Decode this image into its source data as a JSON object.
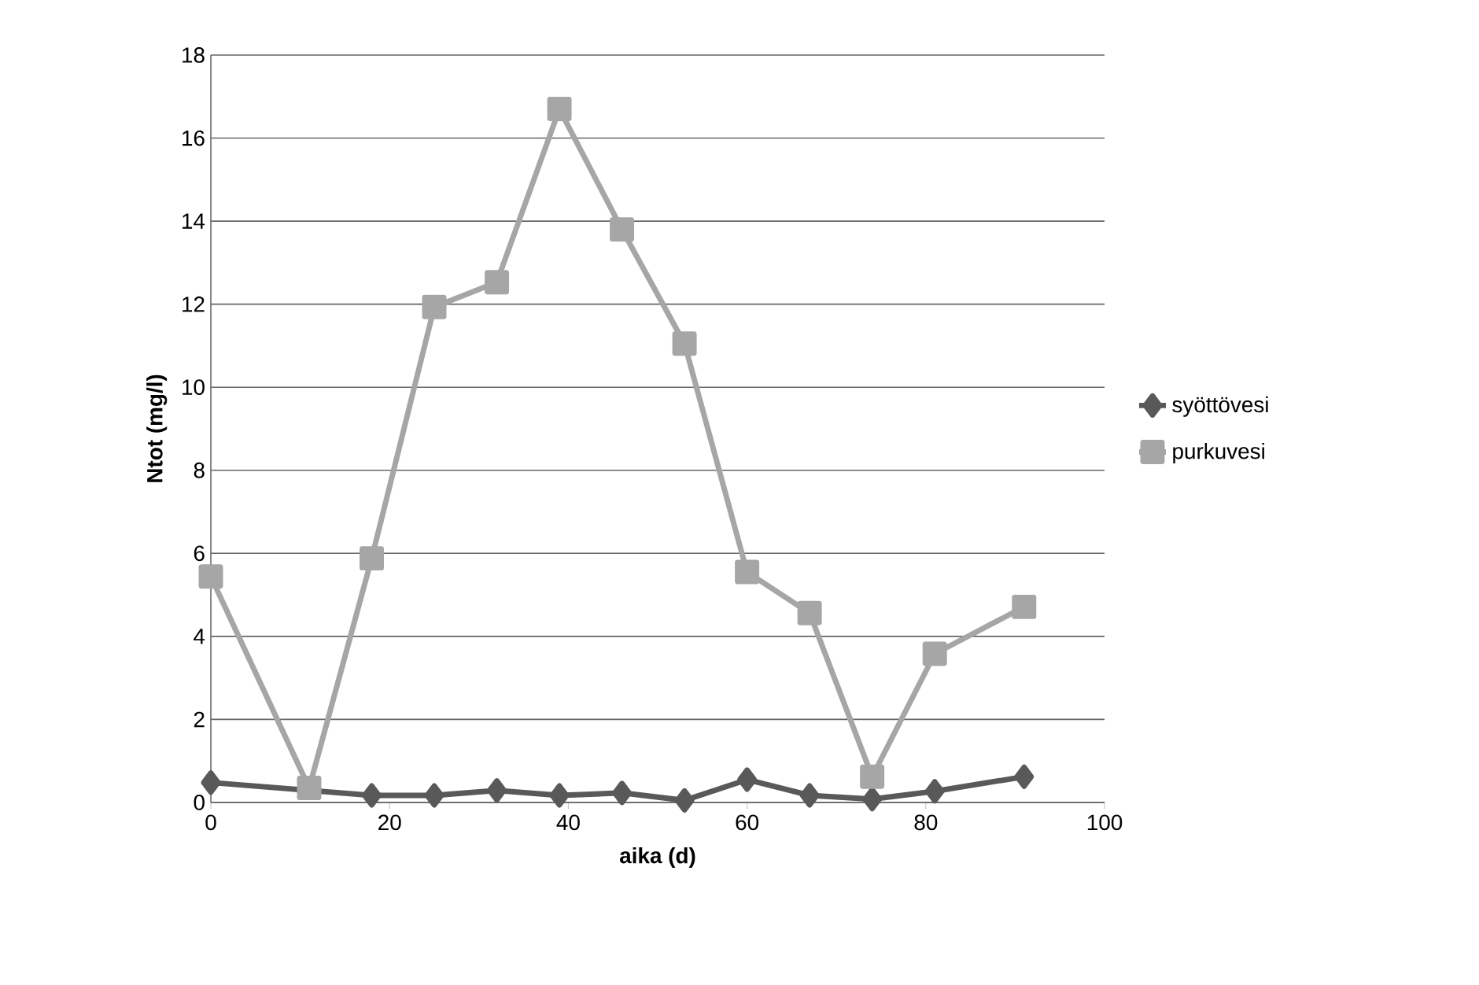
{
  "chart_data": {
    "type": "line",
    "xlabel": "aika (d)",
    "ylabel": "Ntot (mg/l)",
    "xlim": [
      0,
      100
    ],
    "xticks": [
      0,
      20,
      40,
      60,
      80,
      100
    ],
    "ylim": [
      0,
      18
    ],
    "yticks": [
      0,
      2,
      4,
      6,
      8,
      10,
      12,
      14,
      16,
      18
    ],
    "grid": "y",
    "legend": "right",
    "line_style": "solid",
    "x": [
      0,
      11,
      18,
      25,
      32,
      39,
      46,
      53,
      60,
      67,
      74,
      81,
      91
    ],
    "series": [
      {
        "name": "syöttövesi",
        "color": "#595959",
        "marker": "diamond",
        "values": [
          0.48,
          null,
          0.17,
          0.17,
          0.29,
          0.17,
          0.23,
          0.05,
          0.55,
          0.17,
          0.08,
          0.27,
          0.62
        ]
      },
      {
        "name": "purkuvesi",
        "color": "#a6a6a6",
        "marker": "square",
        "values": [
          5.44,
          0.35,
          5.88,
          11.93,
          12.53,
          16.7,
          13.8,
          11.05,
          5.55,
          4.56,
          0.62,
          3.58,
          4.71
        ]
      }
    ]
  }
}
